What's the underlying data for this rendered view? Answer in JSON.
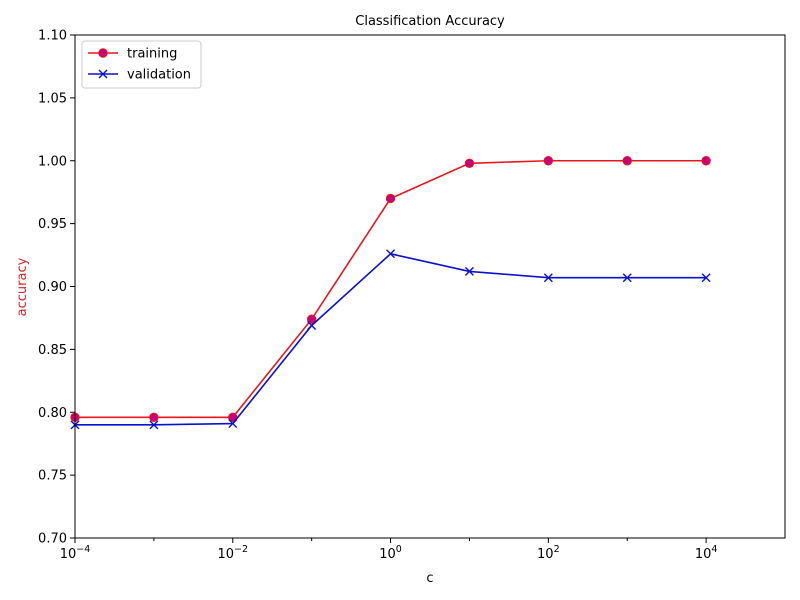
{
  "chart_data": {
    "type": "line",
    "title": "Classification Accuracy",
    "xlabel": "c",
    "ylabel": "accuracy",
    "ylabel_color": "#d62728",
    "xscale": "log",
    "xlim": [
      0.0001,
      100000
    ],
    "ylim": [
      0.7,
      1.1
    ],
    "xticks": [
      {
        "value": 0.0001,
        "base": "10",
        "exp": "−4"
      },
      {
        "value": 0.01,
        "base": "10",
        "exp": "−2"
      },
      {
        "value": 1,
        "base": "10",
        "exp": "0"
      },
      {
        "value": 100,
        "base": "10",
        "exp": "2"
      },
      {
        "value": 10000,
        "base": "10",
        "exp": "4"
      }
    ],
    "yticks": [
      "0.70",
      "0.75",
      "0.80",
      "0.85",
      "0.90",
      "0.95",
      "1.00",
      "1.05",
      "1.10"
    ],
    "x": [
      0.0001,
      0.001,
      0.01,
      0.1,
      1,
      10,
      100,
      1000,
      10000
    ],
    "series": [
      {
        "name": "training",
        "color": "#e8161b",
        "marker": "circle",
        "marker_color": "#c8007a",
        "values": [
          0.796,
          0.796,
          0.796,
          0.874,
          0.97,
          0.998,
          1.0,
          1.0,
          1.0
        ]
      },
      {
        "name": "validation",
        "color": "#0b12cf",
        "marker": "x",
        "marker_color": "#0b12cf",
        "values": [
          0.79,
          0.79,
          0.791,
          0.869,
          0.926,
          0.912,
          0.907,
          0.907,
          0.907
        ]
      }
    ],
    "legend": "top-left",
    "grid": false
  }
}
